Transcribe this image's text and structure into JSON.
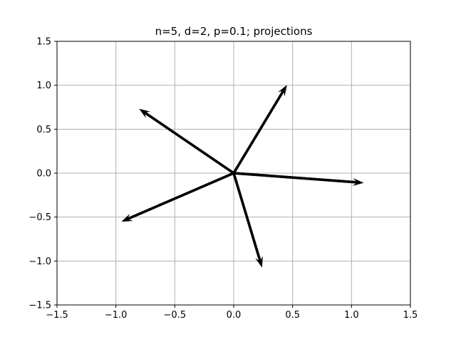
{
  "chart_data": {
    "type": "quiver",
    "title": "n=5, d=2, p=0.1; projections",
    "xlabel": "",
    "ylabel": "",
    "xlim": [
      -1.5,
      1.5
    ],
    "ylim": [
      -1.5,
      1.5
    ],
    "xticks": [
      -1.5,
      -1.0,
      -0.5,
      0.0,
      0.5,
      1.0,
      1.5
    ],
    "yticks": [
      -1.5,
      -1.0,
      -0.5,
      0.0,
      0.5,
      1.0,
      1.5
    ],
    "xtick_labels": [
      "−1.5",
      "−1.0",
      "−0.5",
      "0.0",
      "0.5",
      "1.0",
      "1.5"
    ],
    "ytick_labels": [
      "−1.5",
      "−1.0",
      "−0.5",
      "0.0",
      "0.5",
      "1.0",
      "1.5"
    ],
    "grid": true,
    "origin": [
      0,
      0
    ],
    "vectors": [
      {
        "x": 0.45,
        "y": 1.0
      },
      {
        "x": -0.8,
        "y": 0.73
      },
      {
        "x": 1.1,
        "y": -0.11
      },
      {
        "x": -0.95,
        "y": -0.55
      },
      {
        "x": 0.24,
        "y": -1.07
      }
    ],
    "arrow_color": "#000000",
    "grid_color": "#b0b0b0"
  }
}
